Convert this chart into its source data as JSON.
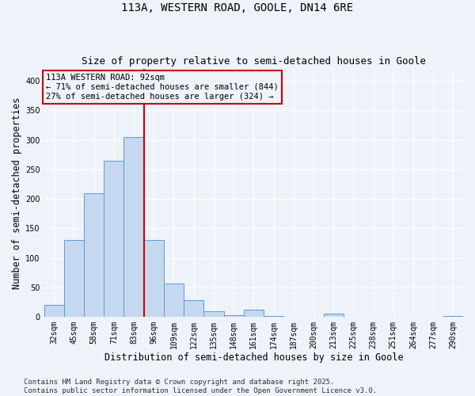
{
  "title_line1": "113A, WESTERN ROAD, GOOLE, DN14 6RE",
  "title_line2": "Size of property relative to semi-detached houses in Goole",
  "xlabel": "Distribution of semi-detached houses by size in Goole",
  "ylabel": "Number of semi-detached properties",
  "categories": [
    "32sqm",
    "45sqm",
    "58sqm",
    "71sqm",
    "83sqm",
    "96sqm",
    "109sqm",
    "122sqm",
    "135sqm",
    "148sqm",
    "161sqm",
    "174sqm",
    "187sqm",
    "200sqm",
    "213sqm",
    "225sqm",
    "238sqm",
    "251sqm",
    "264sqm",
    "277sqm",
    "290sqm"
  ],
  "bar_values": [
    20,
    130,
    210,
    265,
    305,
    130,
    57,
    28,
    10,
    3,
    13,
    2,
    0,
    0,
    5,
    0,
    0,
    0,
    0,
    0,
    2
  ],
  "bar_color": "#c5d8f0",
  "bar_edge_color": "#5b9bd5",
  "ylim": [
    0,
    420
  ],
  "yticks": [
    0,
    50,
    100,
    150,
    200,
    250,
    300,
    350,
    400
  ],
  "property_line_color": "#cc0000",
  "annotation_text": "113A WESTERN ROAD: 92sqm\n← 71% of semi-detached houses are smaller (844)\n27% of semi-detached houses are larger (324) →",
  "annotation_box_color": "#cc0000",
  "footer_line1": "Contains HM Land Registry data © Crown copyright and database right 2025.",
  "footer_line2": "Contains public sector information licensed under the Open Government Licence v3.0.",
  "background_color": "#eef2f9",
  "grid_color": "#ffffff",
  "title_fontsize": 10,
  "subtitle_fontsize": 9,
  "axis_label_fontsize": 8.5,
  "tick_fontsize": 7,
  "annotation_fontsize": 7.5,
  "footer_fontsize": 6.5
}
